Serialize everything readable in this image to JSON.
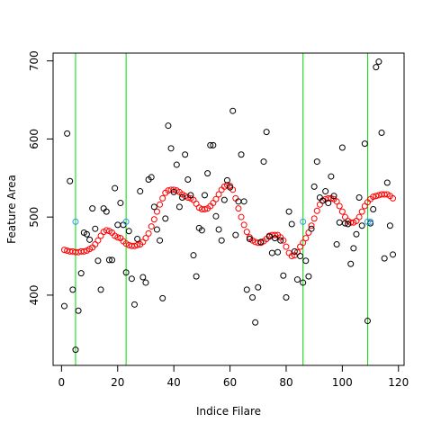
{
  "chart_data": {
    "type": "scatter",
    "xlabel": "Indice Filare",
    "ylabel": "Feature Area",
    "xlim": [
      -3,
      122
    ],
    "ylim": [
      310,
      710
    ],
    "x_ticks": [
      "0",
      "20",
      "40",
      "60",
      "80",
      "100",
      "120"
    ],
    "y_ticks": [
      "400",
      "500",
      "600",
      "700"
    ],
    "vlines": [
      5,
      23,
      86,
      109
    ],
    "colors": {
      "raw": "#000000",
      "smooth": "#ff0000",
      "marker": "#2e9ae6",
      "vline": "#00dd00"
    },
    "series": [
      {
        "values": [
          [
            1,
            386
          ],
          [
            2,
            607
          ],
          [
            3,
            546
          ],
          [
            4,
            407
          ],
          [
            5,
            330
          ],
          [
            6,
            380
          ],
          [
            7,
            428
          ],
          [
            8,
            480
          ],
          [
            9,
            478
          ],
          [
            10,
            471
          ],
          [
            11,
            511
          ],
          [
            12,
            485
          ],
          [
            13,
            444
          ],
          [
            14,
            407
          ],
          [
            15,
            511
          ],
          [
            16,
            507
          ],
          [
            17,
            445
          ],
          [
            18,
            445
          ],
          [
            19,
            537
          ],
          [
            20,
            490
          ],
          [
            21,
            518
          ],
          [
            22,
            490
          ],
          [
            23,
            429
          ],
          [
            24,
            482
          ],
          [
            25,
            421
          ],
          [
            26,
            388
          ],
          [
            27,
            472
          ],
          [
            28,
            533
          ],
          [
            29,
            423
          ],
          [
            30,
            416
          ],
          [
            31,
            548
          ],
          [
            32,
            551
          ],
          [
            33,
            513
          ],
          [
            34,
            484
          ],
          [
            35,
            470
          ],
          [
            36,
            396
          ],
          [
            37,
            498
          ],
          [
            38,
            617
          ],
          [
            39,
            588
          ],
          [
            40,
            532
          ],
          [
            41,
            567
          ],
          [
            42,
            513
          ],
          [
            43,
            525
          ],
          [
            44,
            580
          ],
          [
            45,
            548
          ],
          [
            46,
            528
          ],
          [
            47,
            451
          ],
          [
            48,
            424
          ],
          [
            49,
            486
          ],
          [
            50,
            483
          ],
          [
            51,
            528
          ],
          [
            52,
            556
          ],
          [
            53,
            592
          ],
          [
            54,
            592
          ],
          [
            55,
            501
          ],
          [
            56,
            484
          ],
          [
            57,
            470
          ],
          [
            58,
            522
          ],
          [
            59,
            547
          ],
          [
            60,
            538
          ],
          [
            61,
            636
          ],
          [
            62,
            477
          ],
          [
            63,
            520
          ],
          [
            64,
            580
          ],
          [
            65,
            520
          ],
          [
            66,
            407
          ],
          [
            67,
            472
          ],
          [
            68,
            397
          ],
          [
            69,
            365
          ],
          [
            70,
            410
          ],
          [
            71,
            468
          ],
          [
            72,
            571
          ],
          [
            73,
            609
          ],
          [
            74,
            475
          ],
          [
            75,
            454
          ],
          [
            76,
            473
          ],
          [
            77,
            455
          ],
          [
            78,
            470
          ],
          [
            79,
            425
          ],
          [
            80,
            397
          ],
          [
            81,
            507
          ],
          [
            82,
            491
          ],
          [
            83,
            456
          ],
          [
            84,
            420
          ],
          [
            85,
            450
          ],
          [
            86,
            416
          ],
          [
            87,
            444
          ],
          [
            88,
            424
          ],
          [
            89,
            485
          ],
          [
            90,
            539
          ],
          [
            91,
            571
          ],
          [
            92,
            525
          ],
          [
            93,
            521
          ],
          [
            94,
            533
          ],
          [
            95,
            518
          ],
          [
            96,
            552
          ],
          [
            97,
            527
          ],
          [
            98,
            465
          ],
          [
            99,
            493
          ],
          [
            100,
            589
          ],
          [
            101,
            492
          ],
          [
            102,
            491
          ],
          [
            103,
            440
          ],
          [
            104,
            460
          ],
          [
            105,
            478
          ],
          [
            106,
            525
          ],
          [
            107,
            489
          ],
          [
            108,
            594
          ],
          [
            109,
            367
          ],
          [
            110,
            492
          ],
          [
            111,
            510
          ],
          [
            112,
            692
          ],
          [
            113,
            699
          ],
          [
            114,
            608
          ],
          [
            115,
            447
          ],
          [
            116,
            544
          ],
          [
            117,
            489
          ],
          [
            118,
            452
          ]
        ]
      },
      {
        "values": [
          [
            1,
            458
          ],
          [
            2,
            457
          ],
          [
            3,
            456
          ],
          [
            4,
            456
          ],
          [
            5,
            455
          ],
          [
            6,
            455
          ],
          [
            7,
            456
          ],
          [
            8,
            456
          ],
          [
            9,
            457
          ],
          [
            10,
            459
          ],
          [
            11,
            461
          ],
          [
            12,
            465
          ],
          [
            13,
            470
          ],
          [
            14,
            476
          ],
          [
            15,
            481
          ],
          [
            16,
            483
          ],
          [
            17,
            482
          ],
          [
            18,
            480
          ],
          [
            19,
            476
          ],
          [
            20,
            474
          ],
          [
            21,
            473
          ],
          [
            22,
            469
          ],
          [
            23,
            466
          ],
          [
            24,
            464
          ],
          [
            25,
            463
          ],
          [
            26,
            463
          ],
          [
            27,
            464
          ],
          [
            28,
            465
          ],
          [
            29,
            468
          ],
          [
            30,
            473
          ],
          [
            31,
            479
          ],
          [
            32,
            488
          ],
          [
            33,
            497
          ],
          [
            34,
            507
          ],
          [
            35,
            516
          ],
          [
            36,
            524
          ],
          [
            37,
            531
          ],
          [
            38,
            534
          ],
          [
            39,
            535
          ],
          [
            40,
            535
          ],
          [
            41,
            534
          ],
          [
            42,
            532
          ],
          [
            43,
            529
          ],
          [
            44,
            527
          ],
          [
            45,
            525
          ],
          [
            46,
            524
          ],
          [
            47,
            522
          ],
          [
            48,
            517
          ],
          [
            49,
            512
          ],
          [
            50,
            510
          ],
          [
            51,
            510
          ],
          [
            52,
            511
          ],
          [
            53,
            514
          ],
          [
            54,
            518
          ],
          [
            55,
            523
          ],
          [
            56,
            529
          ],
          [
            57,
            535
          ],
          [
            58,
            539
          ],
          [
            59,
            541
          ],
          [
            60,
            540
          ],
          [
            61,
            535
          ],
          [
            62,
            524
          ],
          [
            63,
            511
          ],
          [
            64,
            500
          ],
          [
            65,
            490
          ],
          [
            66,
            481
          ],
          [
            67,
            474
          ],
          [
            68,
            470
          ],
          [
            69,
            468
          ],
          [
            70,
            467
          ],
          [
            71,
            467
          ],
          [
            72,
            469
          ],
          [
            73,
            472
          ],
          [
            74,
            476
          ],
          [
            75,
            477
          ],
          [
            76,
            477
          ],
          [
            77,
            477
          ],
          [
            78,
            474
          ],
          [
            79,
            470
          ],
          [
            80,
            462
          ],
          [
            81,
            454
          ],
          [
            82,
            450
          ],
          [
            83,
            451
          ],
          [
            84,
            455
          ],
          [
            85,
            462
          ],
          [
            86,
            467
          ],
          [
            87,
            473
          ],
          [
            88,
            480
          ],
          [
            89,
            489
          ],
          [
            90,
            498
          ],
          [
            91,
            508
          ],
          [
            92,
            516
          ],
          [
            93,
            521
          ],
          [
            94,
            523
          ],
          [
            95,
            524
          ],
          [
            96,
            524
          ],
          [
            97,
            523
          ],
          [
            98,
            520
          ],
          [
            99,
            514
          ],
          [
            100,
            507
          ],
          [
            101,
            500
          ],
          [
            102,
            495
          ],
          [
            103,
            493
          ],
          [
            104,
            493
          ],
          [
            105,
            495
          ],
          [
            106,
            500
          ],
          [
            107,
            507
          ],
          [
            108,
            514
          ],
          [
            109,
            519
          ],
          [
            110,
            523
          ],
          [
            111,
            526
          ],
          [
            112,
            527
          ],
          [
            113,
            528
          ],
          [
            114,
            529
          ],
          [
            115,
            529
          ],
          [
            116,
            529
          ],
          [
            117,
            527
          ],
          [
            118,
            524
          ]
        ]
      },
      {
        "values": [
          [
            5,
            494
          ],
          [
            23,
            494
          ],
          [
            86,
            494
          ],
          [
            109,
            494
          ],
          [
            110,
            494
          ]
        ]
      }
    ]
  }
}
